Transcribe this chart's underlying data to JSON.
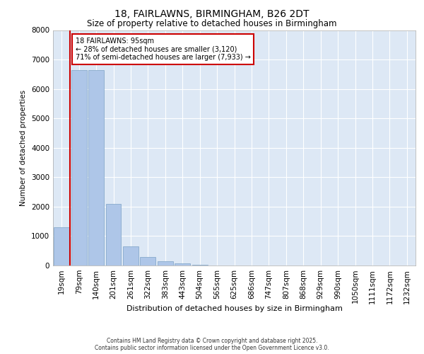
{
  "title": "18, FAIRLAWNS, BIRMINGHAM, B26 2DT",
  "subtitle": "Size of property relative to detached houses in Birmingham",
  "xlabel": "Distribution of detached houses by size in Birmingham",
  "ylabel": "Number of detached properties",
  "categories": [
    "19sqm",
    "79sqm",
    "140sqm",
    "201sqm",
    "261sqm",
    "322sqm",
    "383sqm",
    "443sqm",
    "504sqm",
    "565sqm",
    "625sqm",
    "686sqm",
    "747sqm",
    "807sqm",
    "868sqm",
    "929sqm",
    "990sqm",
    "1050sqm",
    "1111sqm",
    "1172sqm",
    "1232sqm"
  ],
  "values": [
    1300,
    6650,
    6650,
    2100,
    650,
    300,
    150,
    80,
    30,
    10,
    5,
    2,
    1,
    1,
    0,
    0,
    0,
    0,
    0,
    0,
    0
  ],
  "bar_color": "#aec6e8",
  "bar_edge_color": "#88aacc",
  "background_color": "#dde8f5",
  "grid_color": "#ffffff",
  "vline_color": "#cc0000",
  "annotation_text": "18 FAIRLAWNS: 95sqm\n← 28% of detached houses are smaller (3,120)\n71% of semi-detached houses are larger (7,933) →",
  "annotation_box_color": "#ffffff",
  "annotation_box_edge_color": "#cc0000",
  "ylim": [
    0,
    8000
  ],
  "yticks": [
    0,
    1000,
    2000,
    3000,
    4000,
    5000,
    6000,
    7000,
    8000
  ],
  "footer_line1": "Contains HM Land Registry data © Crown copyright and database right 2025.",
  "footer_line2": "Contains public sector information licensed under the Open Government Licence v3.0."
}
